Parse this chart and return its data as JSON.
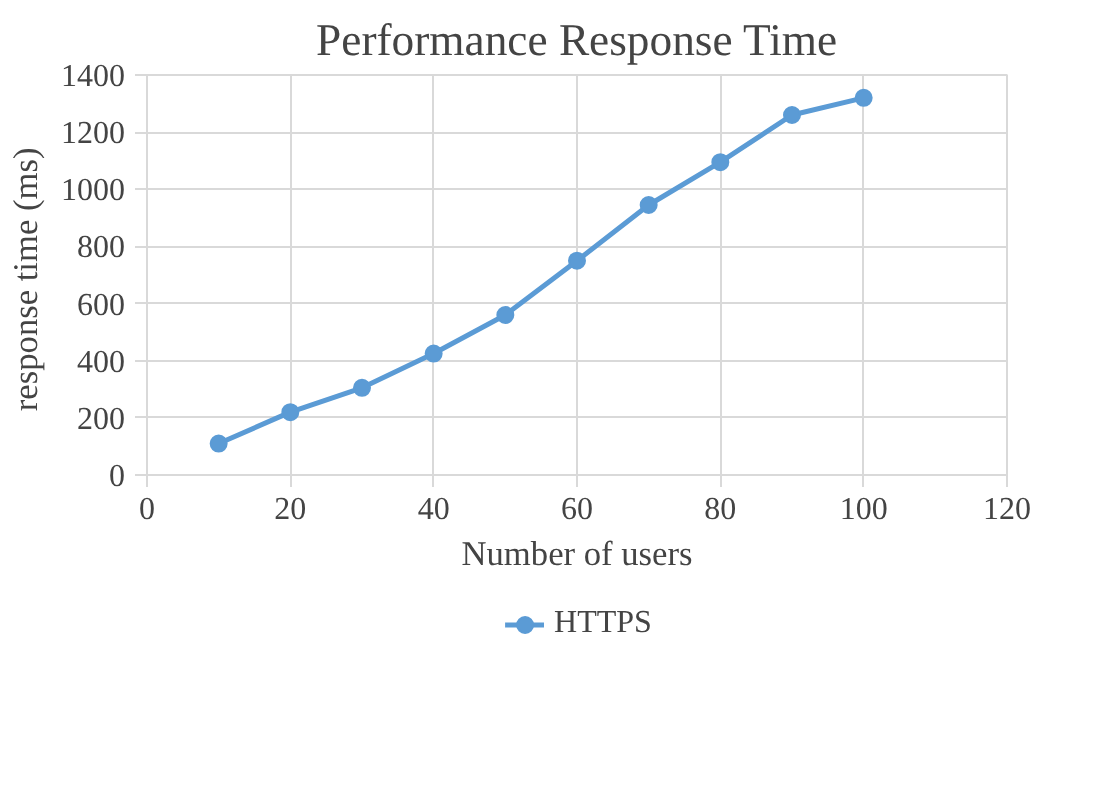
{
  "chart_data": {
    "type": "line",
    "title": "Performance Response Time",
    "xlabel": "Number of users",
    "ylabel": "response time  (ms)",
    "x": [
      10,
      20,
      30,
      40,
      50,
      60,
      70,
      80,
      90,
      100
    ],
    "series": [
      {
        "name": "HTTPS",
        "color": "#5b9bd5",
        "values": [
          110,
          220,
          305,
          425,
          560,
          750,
          945,
          1095,
          1260,
          1320
        ]
      }
    ],
    "xlim": [
      0,
      120
    ],
    "xticks": [
      0,
      20,
      40,
      60,
      80,
      100,
      120
    ],
    "ylim": [
      0,
      1400
    ],
    "yticks": [
      0,
      200,
      400,
      600,
      800,
      1000,
      1200,
      1400
    ],
    "grid": true,
    "legend": "bottom",
    "marker": "circle",
    "line_style": "solid"
  }
}
